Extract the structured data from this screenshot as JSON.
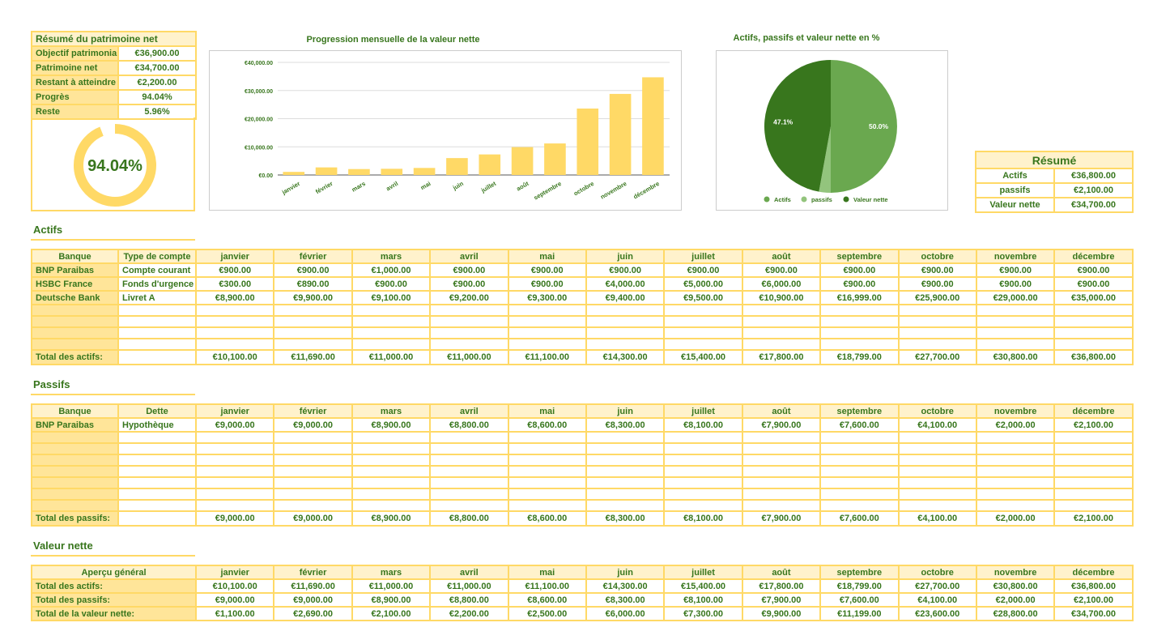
{
  "summary": {
    "title": "Résumé du patrimoine net",
    "rows": [
      {
        "label": "Objectif patrimonial",
        "value": "€36,900.00"
      },
      {
        "label": "Patrimoine net",
        "value": "€34,700.00"
      },
      {
        "label": "Restant à atteindre",
        "value": "€2,200.00"
      },
      {
        "label": "Progrès",
        "value": "94.04%"
      },
      {
        "label": "Reste",
        "value": "5.96%"
      }
    ],
    "gauge_label": "94.04%",
    "gauge_progress": 0.9404
  },
  "months": [
    "janvier",
    "février",
    "mars",
    "avril",
    "mai",
    "juin",
    "juillet",
    "août",
    "septembre",
    "octobre",
    "novembre",
    "décembre"
  ],
  "chart_data": [
    {
      "type": "bar",
      "title": "Progression mensuelle de la valeur nette",
      "categories": [
        "janvier",
        "février",
        "mars",
        "avril",
        "mai",
        "juin",
        "juillet",
        "août",
        "septembre",
        "octobre",
        "novembre",
        "décembre"
      ],
      "values": [
        1100,
        2690,
        2100,
        2200,
        2500,
        6000,
        7300,
        9900,
        11199,
        23600,
        28800,
        34700
      ],
      "ylim": [
        0,
        40000
      ],
      "yticks": [
        "€0.00",
        "€10,000.00",
        "€20,000.00",
        "€30,000.00",
        "€40,000.00"
      ],
      "grid": true,
      "color": "#ffd966"
    },
    {
      "type": "pie",
      "title": "Actifs, passifs et valeur nette en %",
      "categories": [
        "Actifs",
        "passifs",
        "Valeur nette"
      ],
      "values": [
        36800,
        2100,
        34700
      ],
      "labels": [
        "50.0%",
        "",
        "47.1%"
      ],
      "colors": [
        "#6aa84f",
        "#93c47d",
        "#38761d"
      ],
      "legend": "bottom"
    }
  ],
  "resume": {
    "title": "Résumé",
    "rows": [
      {
        "label": "Actifs",
        "value": "€36,800.00"
      },
      {
        "label": "passifs",
        "value": "€2,100.00"
      },
      {
        "label": "Valeur nette",
        "value": "€34,700.00"
      }
    ]
  },
  "actifs": {
    "title": "Actifs",
    "headers": [
      "Banque",
      "Type de compte"
    ],
    "rows": [
      {
        "bank": "BNP Paraibas",
        "type": "Compte courant",
        "values": [
          "€900.00",
          "€900.00",
          "€1,000.00",
          "€900.00",
          "€900.00",
          "€900.00",
          "€900.00",
          "€900.00",
          "€900.00",
          "€900.00",
          "€900.00",
          "€900.00"
        ]
      },
      {
        "bank": "HSBC France",
        "type": "Fonds d'urgence",
        "values": [
          "€300.00",
          "€890.00",
          "€900.00",
          "€900.00",
          "€900.00",
          "€4,000.00",
          "€5,000.00",
          "€6,000.00",
          "€900.00",
          "€900.00",
          "€900.00",
          "€900.00"
        ]
      },
      {
        "bank": "Deutsche Bank",
        "type": "Livret A",
        "values": [
          "€8,900.00",
          "€9,900.00",
          "€9,100.00",
          "€9,200.00",
          "€9,300.00",
          "€9,400.00",
          "€9,500.00",
          "€10,900.00",
          "€16,999.00",
          "€25,900.00",
          "€29,000.00",
          "€35,000.00"
        ]
      }
    ],
    "empty_rows": 4,
    "total_label": "Total des actifs:",
    "totals": [
      "€10,100.00",
      "€11,690.00",
      "€11,000.00",
      "€11,000.00",
      "€11,100.00",
      "€14,300.00",
      "€15,400.00",
      "€17,800.00",
      "€18,799.00",
      "€27,700.00",
      "€30,800.00",
      "€36,800.00"
    ]
  },
  "passifs": {
    "title": "Passifs",
    "headers": [
      "Banque",
      "Dette"
    ],
    "rows": [
      {
        "bank": "BNP Paraibas",
        "type": "Hypothèque",
        "values": [
          "€9,000.00",
          "€9,000.00",
          "€8,900.00",
          "€8,800.00",
          "€8,600.00",
          "€8,300.00",
          "€8,100.00",
          "€7,900.00",
          "€7,600.00",
          "€4,100.00",
          "€2,000.00",
          "€2,100.00"
        ]
      }
    ],
    "empty_rows": 7,
    "total_label": "Total des passifs:",
    "totals": [
      "€9,000.00",
      "€9,000.00",
      "€8,900.00",
      "€8,800.00",
      "€8,600.00",
      "€8,300.00",
      "€8,100.00",
      "€7,900.00",
      "€7,600.00",
      "€4,100.00",
      "€2,000.00",
      "€2,100.00"
    ]
  },
  "valeur": {
    "title": "Valeur nette",
    "header": "Aperçu général",
    "rows": [
      {
        "label": "Total des actifs:",
        "values": [
          "€10,100.00",
          "€11,690.00",
          "€11,000.00",
          "€11,000.00",
          "€11,100.00",
          "€14,300.00",
          "€15,400.00",
          "€17,800.00",
          "€18,799.00",
          "€27,700.00",
          "€30,800.00",
          "€36,800.00"
        ]
      },
      {
        "label": "Total des passifs:",
        "values": [
          "€9,000.00",
          "€9,000.00",
          "€8,900.00",
          "€8,800.00",
          "€8,600.00",
          "€8,300.00",
          "€8,100.00",
          "€7,900.00",
          "€7,600.00",
          "€4,100.00",
          "€2,000.00",
          "€2,100.00"
        ]
      },
      {
        "label": "Total de la valeur nette:",
        "values": [
          "€1,100.00",
          "€2,690.00",
          "€2,100.00",
          "€2,200.00",
          "€2,500.00",
          "€6,000.00",
          "€7,300.00",
          "€9,900.00",
          "€11,199.00",
          "€23,600.00",
          "€28,800.00",
          "€34,700.00"
        ]
      }
    ]
  }
}
